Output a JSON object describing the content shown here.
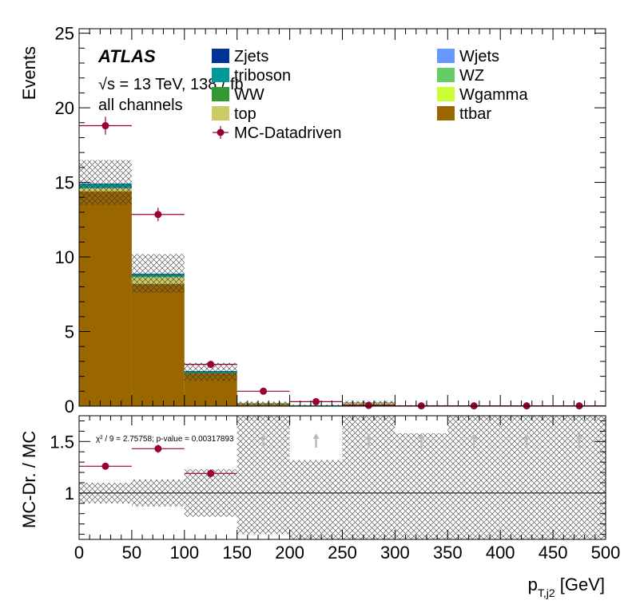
{
  "chart_data": {
    "type": "bar",
    "stacked": true,
    "bin_edges": [
      0,
      50,
      100,
      150,
      200,
      250,
      300,
      350,
      400,
      450,
      500
    ],
    "xlabel": "p_{T,j2} [GeV]",
    "xlabel_main": "p",
    "xlabel_sub": "T,j2",
    "xlabel_unit": " [GeV]",
    "ylabel": "Events",
    "ylim": [
      0,
      25.3
    ],
    "xlim": [
      0,
      500
    ],
    "x_ticks": [
      0,
      50,
      100,
      150,
      200,
      250,
      300,
      350,
      400,
      450,
      500
    ],
    "y_ticks": [
      0,
      5,
      10,
      15,
      20,
      25
    ],
    "atlas_label": "ATLAS",
    "energy_label": "√s = 13 TeV, 138 / fb",
    "channel_label": "all channels",
    "legend_position": "top",
    "series": [
      {
        "name": "ttbar",
        "color": "#996600",
        "values": [
          14.4,
          8.2,
          2.2,
          0.15,
          0.05,
          0.12,
          0.03,
          0.0,
          0.0,
          0.0
        ]
      },
      {
        "name": "top",
        "color": "#cccc66",
        "values": [
          0.2,
          0.45,
          0.0,
          0.05,
          0.0,
          0.12,
          0.0,
          0.0,
          0.0,
          0.0
        ]
      },
      {
        "name": "WW",
        "color": "#339933",
        "values": [
          0.05,
          0.04,
          0.02,
          0.0,
          0.0,
          0.0,
          0.0,
          0.0,
          0.0,
          0.0
        ]
      },
      {
        "name": "triboson",
        "color": "#009999",
        "values": [
          0.25,
          0.17,
          0.12,
          0.02,
          0.01,
          0.01,
          0.0,
          0.0,
          0.0,
          0.0
        ]
      },
      {
        "name": "Zjets",
        "color": "#003399",
        "values": [
          0.02,
          0.02,
          0.01,
          0.0,
          0.0,
          0.0,
          0.0,
          0.0,
          0.0,
          0.0
        ]
      },
      {
        "name": "Wjets",
        "color": "#6699ff",
        "values": [
          0.0,
          0.0,
          0.0,
          0.0,
          0.0,
          0.0,
          0.0,
          0.0,
          0.0,
          0.0
        ]
      },
      {
        "name": "WZ",
        "color": "#66cc66",
        "values": [
          0.0,
          0.0,
          0.0,
          0.0,
          0.0,
          0.0,
          0.0,
          0.0,
          0.0,
          0.0
        ]
      },
      {
        "name": "Wgamma",
        "color": "#ccff33",
        "values": [
          0.0,
          0.0,
          0.0,
          0.0,
          0.0,
          0.0,
          0.0,
          0.0,
          0.0,
          0.0
        ]
      }
    ],
    "legend_left": [
      "Zjets",
      "triboson",
      "WW",
      "top"
    ],
    "legend_right": [
      "Wjets",
      "WZ",
      "Wgamma",
      "ttbar"
    ],
    "data_series": {
      "name": "MC-Datadriven",
      "color": "#990033",
      "values": [
        18.8,
        12.85,
        2.8,
        1.0,
        0.3,
        0.05,
        0.02,
        0.02,
        0.02,
        0.02
      ],
      "errors": [
        0.6,
        0.45,
        0.15,
        0.08,
        0.05,
        0.03,
        0.02,
        0.02,
        0.02,
        0.02
      ]
    },
    "mc_band": {
      "up": [
        16.5,
        10.2,
        2.9,
        0.3,
        0.1,
        0.35,
        0.08,
        0.05,
        0.02,
        0.02
      ],
      "down": [
        13.5,
        7.6,
        1.7,
        0.05,
        0.0,
        0.05,
        0.0,
        0.0,
        0.0,
        0.0
      ]
    },
    "ratio": {
      "ylabel": "MC-Dr. / MC",
      "ylim": [
        0.55,
        1.75
      ],
      "y_ticks": [
        1,
        1.5
      ],
      "y_tick_labels": [
        "1",
        "1.5"
      ],
      "reference": 1,
      "stat_text": "χ² / 9 = 2.75758; p-value = 0.00317893",
      "values": [
        1.26,
        1.43,
        1.19,
        null,
        null,
        null,
        null,
        null,
        null,
        null
      ],
      "errors": [
        0.03,
        0.04,
        0.04,
        null,
        null,
        null,
        null,
        null,
        null,
        null
      ],
      "off_scale_arrows": [
        false,
        false,
        false,
        true,
        true,
        true,
        true,
        true,
        true,
        true
      ],
      "band_up": [
        1.1,
        1.13,
        1.23,
        1.75,
        1.32,
        1.75,
        1.58,
        1.75,
        1.75,
        1.75
      ],
      "band_down": [
        0.9,
        0.87,
        0.77,
        0.6,
        0.55,
        0.55,
        0.55,
        0.55,
        0.55,
        0.55
      ]
    }
  }
}
